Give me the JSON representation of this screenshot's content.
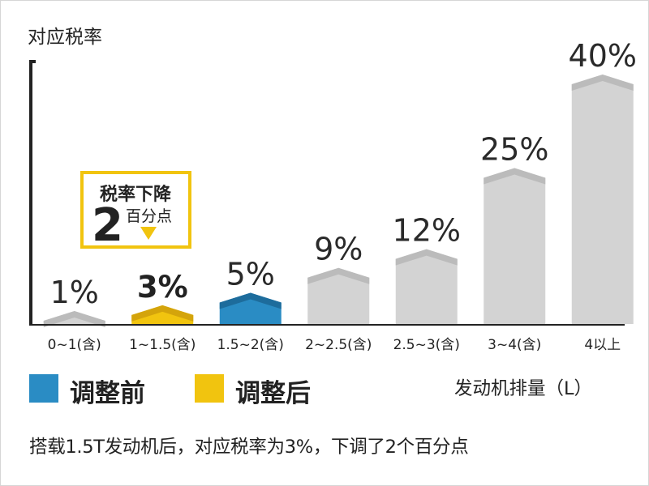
{
  "chart_data": {
    "type": "bar",
    "ylabel": "对应税率",
    "xlabel": "发动机排量（L）",
    "categories": [
      "0~1(含)",
      "1~1.5(含)",
      "1.5~2(含)",
      "2~2.5(含)",
      "2.5~3(含)",
      "3~4(含)",
      "4以上"
    ],
    "values": [
      1,
      3,
      5,
      9,
      12,
      25,
      40
    ],
    "value_labels": [
      "1%",
      "3%",
      "5%",
      "9%",
      "12%",
      "25%",
      "40%"
    ],
    "ylim": [
      0,
      40
    ],
    "bar_types": [
      "default",
      "after",
      "before",
      "default",
      "default",
      "default",
      "default"
    ],
    "legend": [
      {
        "label": "调整前",
        "color": "#2a8cc4"
      },
      {
        "label": "调整后",
        "color": "#f1c40f"
      }
    ],
    "annotation": {
      "line1": "税率下降",
      "big": "2",
      "small": "百分点"
    },
    "colors": {
      "default": "#d3d3d3",
      "default_cap": "#bbbbbb",
      "before": "#2a8cc4",
      "before_cap": "#1d6c9c",
      "after": "#f1c40f",
      "after_cap": "#d4a40b",
      "axis": "#222222",
      "highlight_label": "#222222"
    }
  },
  "footer_note": "搭载1.5T发动机后，对应税率为3%，下调了2个百分点"
}
